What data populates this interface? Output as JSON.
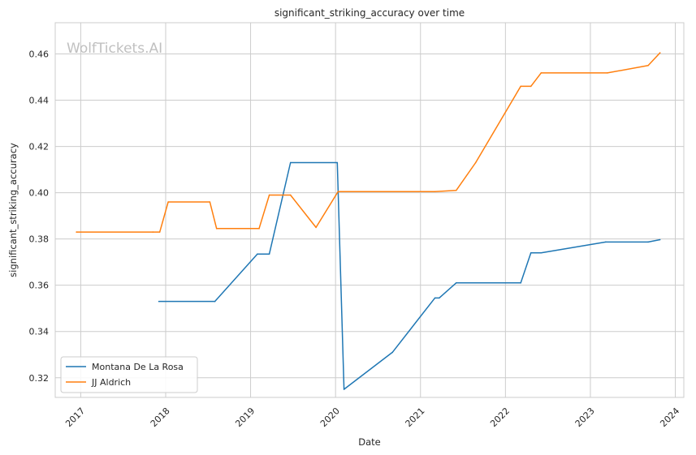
{
  "chart_data": {
    "type": "line",
    "title": "significant_striking_accuracy over time",
    "xlabel": "Date",
    "ylabel": "significant_striking_accuracy",
    "watermark": "WolfTickets.AI",
    "xlim": [
      2016.7,
      2024.1
    ],
    "ylim": [
      0.3115,
      0.4735
    ],
    "x_ticks": [
      2017,
      2018,
      2019,
      2020,
      2021,
      2022,
      2023,
      2024
    ],
    "x_tick_labels": [
      "2017",
      "2018",
      "2019",
      "2020",
      "2021",
      "2022",
      "2023",
      "2024"
    ],
    "y_ticks": [
      0.32,
      0.34,
      0.36,
      0.38,
      0.4,
      0.42,
      0.44,
      0.46
    ],
    "y_tick_labels": [
      "0.32",
      "0.34",
      "0.36",
      "0.38",
      "0.40",
      "0.42",
      "0.44",
      "0.46"
    ],
    "grid": true,
    "legend_position": "lower-left",
    "series": [
      {
        "name": "Montana De La Rosa",
        "color": "#1f77b4",
        "points": [
          [
            2017.92,
            0.353
          ],
          [
            2018.58,
            0.353
          ],
          [
            2019.08,
            0.3735
          ],
          [
            2019.22,
            0.3735
          ],
          [
            2019.47,
            0.413
          ],
          [
            2020.02,
            0.413
          ],
          [
            2020.1,
            0.315
          ],
          [
            2020.67,
            0.331
          ],
          [
            2021.17,
            0.3545
          ],
          [
            2021.22,
            0.3545
          ],
          [
            2021.42,
            0.361
          ],
          [
            2022.18,
            0.361
          ],
          [
            2022.3,
            0.374
          ],
          [
            2022.42,
            0.374
          ],
          [
            2023.18,
            0.3787
          ],
          [
            2023.68,
            0.3787
          ],
          [
            2023.82,
            0.3797
          ]
        ]
      },
      {
        "name": "JJ Aldrich",
        "color": "#ff7f0e",
        "points": [
          [
            2016.95,
            0.383
          ],
          [
            2017.85,
            0.383
          ],
          [
            2017.93,
            0.383
          ],
          [
            2018.03,
            0.396
          ],
          [
            2018.52,
            0.396
          ],
          [
            2018.6,
            0.3845
          ],
          [
            2019.1,
            0.3845
          ],
          [
            2019.22,
            0.399
          ],
          [
            2019.47,
            0.399
          ],
          [
            2019.77,
            0.385
          ],
          [
            2020.03,
            0.4005
          ],
          [
            2021.17,
            0.4005
          ],
          [
            2021.42,
            0.401
          ],
          [
            2021.65,
            0.413
          ],
          [
            2022.18,
            0.446
          ],
          [
            2022.3,
            0.446
          ],
          [
            2022.42,
            0.4518
          ],
          [
            2023.2,
            0.4518
          ],
          [
            2023.68,
            0.455
          ],
          [
            2023.82,
            0.4605
          ]
        ]
      }
    ]
  }
}
